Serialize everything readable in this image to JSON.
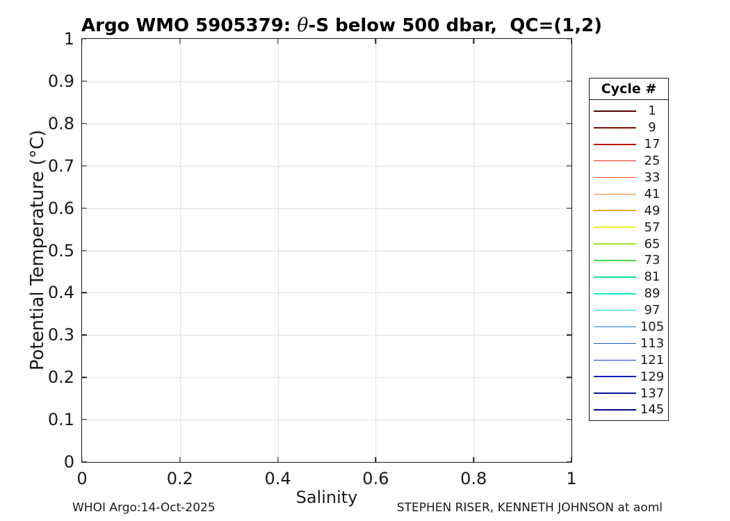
{
  "figure": {
    "title": {
      "prefix": "Argo WMO 5905379: ",
      "theta": "θ",
      "suffix": "-S below 500 dbar,  QC=(1,2)"
    },
    "footer_left": "WHOI Argo:14-Oct-2025",
    "footer_right": "STEPHEN RISER, KENNETH JOHNSON at aoml"
  },
  "chart_data": {
    "type": "line",
    "title": "Argo WMO 5905379: θ-S below 500 dbar,  QC=(1,2)",
    "xlabel": "Salinity",
    "ylabel": "Potential Temperature (°C)",
    "xlim": [
      0,
      1
    ],
    "ylim": [
      0,
      1
    ],
    "xticks": [
      0,
      0.2,
      0.4,
      0.6,
      0.8,
      1
    ],
    "yticks": [
      0,
      0.1,
      0.2,
      0.3,
      0.4,
      0.5,
      0.6,
      0.7,
      0.8,
      0.9,
      1
    ],
    "grid": true,
    "series": [],
    "legend": {
      "title": "Cycle #",
      "position": "right-outside",
      "entries": [
        {
          "label": "1",
          "color": "#4e0402"
        },
        {
          "label": "9",
          "color": "#850d03"
        },
        {
          "label": "17",
          "color": "#b81708"
        },
        {
          "label": "25",
          "color": "#e62c0a"
        },
        {
          "label": "33",
          "color": "#ff5512"
        },
        {
          "label": "41",
          "color": "#ff8016"
        },
        {
          "label": "49",
          "color": "#f3a914"
        },
        {
          "label": "57",
          "color": "#e9ee1e"
        },
        {
          "label": "65",
          "color": "#a2e532"
        },
        {
          "label": "73",
          "color": "#48d24c"
        },
        {
          "label": "81",
          "color": "#0ee68a"
        },
        {
          "label": "89",
          "color": "#0ceccc"
        },
        {
          "label": "97",
          "color": "#0cc8f0"
        },
        {
          "label": "105",
          "color": "#1e82e8"
        },
        {
          "label": "113",
          "color": "#1956d6"
        },
        {
          "label": "121",
          "color": "#1433e0"
        },
        {
          "label": "129",
          "color": "#0e21b9"
        },
        {
          "label": "137",
          "color": "#081499"
        },
        {
          "label": "145",
          "color": "#020381"
        }
      ]
    }
  },
  "style": {
    "grid_color": "#e2e2e2",
    "axis_color": "#1a1a1a",
    "background": "#ffffff"
  }
}
